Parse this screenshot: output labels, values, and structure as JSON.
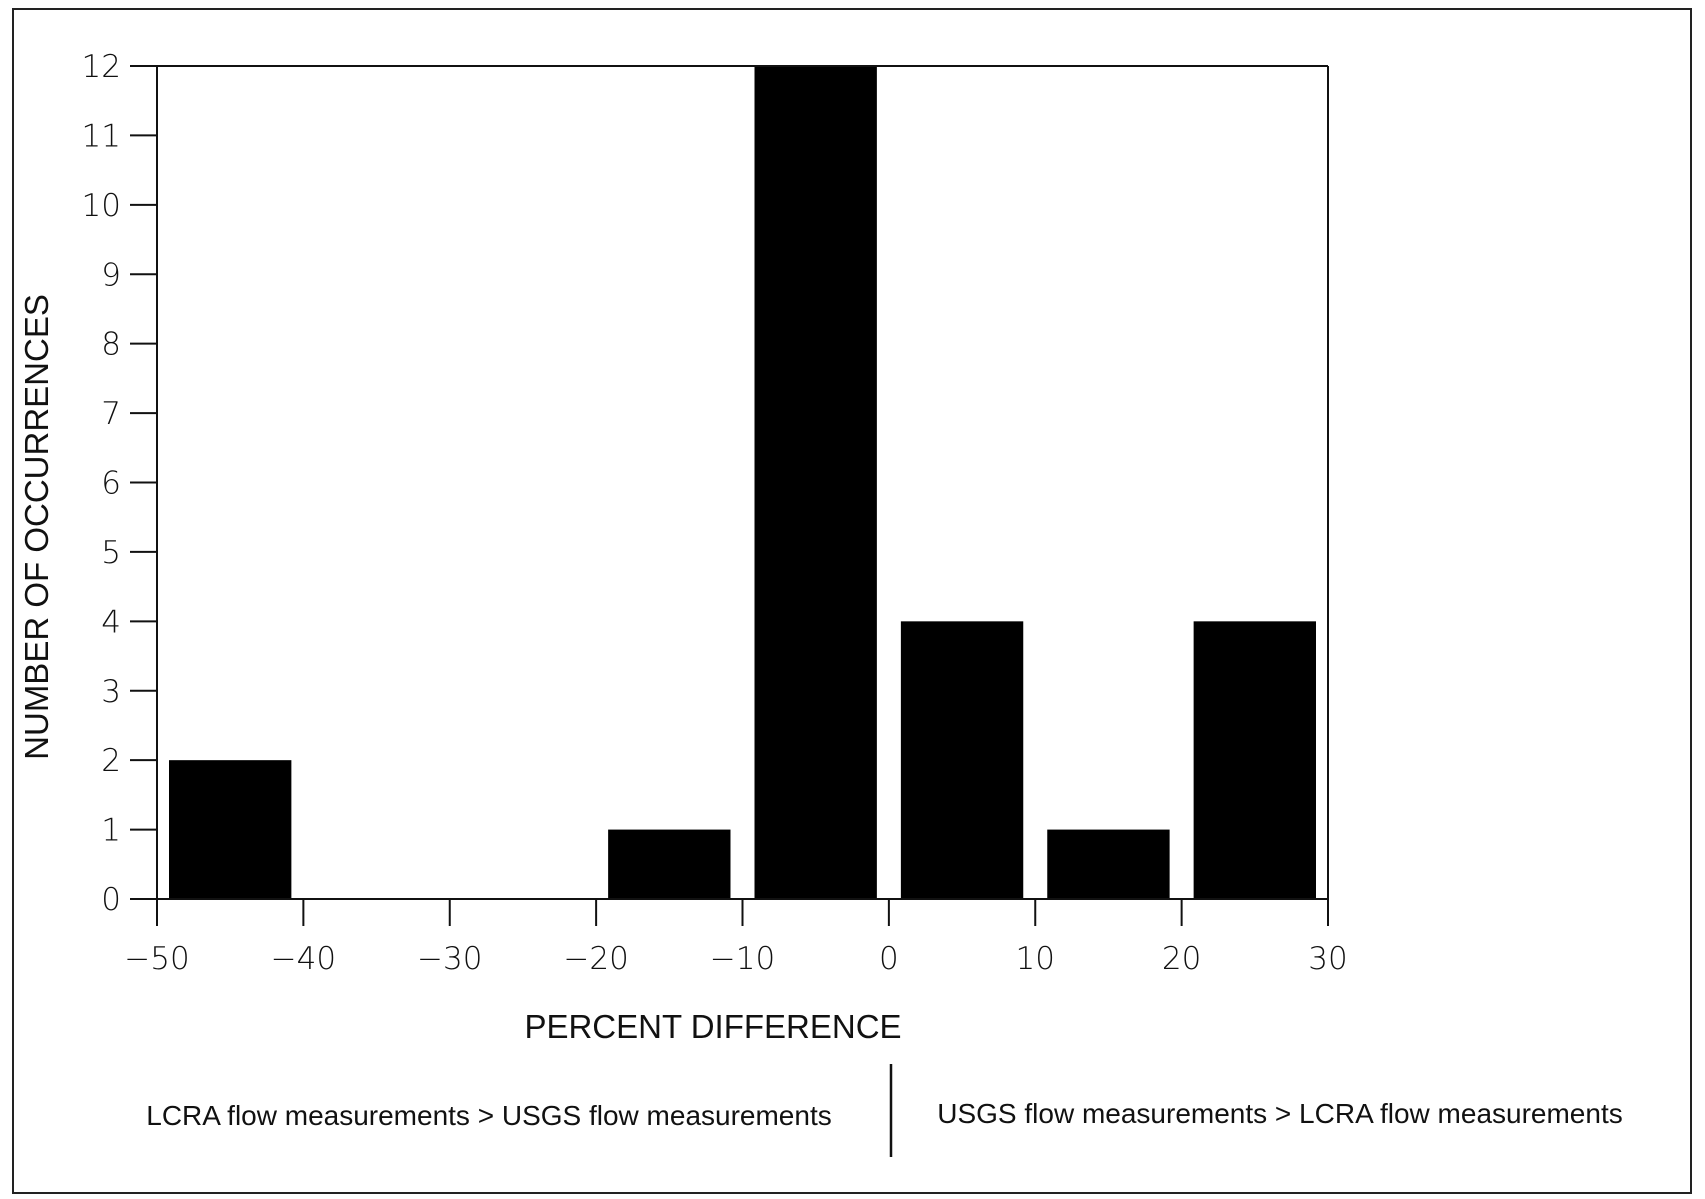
{
  "chart_data": {
    "type": "bar",
    "xlabel": "PERCENT DIFFERENCE",
    "ylabel": "NUMBER OF OCCURRENCES",
    "xlim": [
      -50,
      30
    ],
    "ylim": [
      0,
      12
    ],
    "x_ticks": [
      "−50",
      "−40",
      "−30",
      "−20",
      "−10",
      "0",
      "10",
      "20",
      "30"
    ],
    "y_ticks": [
      "0",
      "1",
      "2",
      "3",
      "4",
      "5",
      "6",
      "7",
      "8",
      "9",
      "10",
      "11",
      "12"
    ],
    "bins": [
      {
        "from": -50,
        "to": -40,
        "count": 2
      },
      {
        "from": -40,
        "to": -30,
        "count": 0
      },
      {
        "from": -30,
        "to": -20,
        "count": 0
      },
      {
        "from": -20,
        "to": -10,
        "count": 1
      },
      {
        "from": -10,
        "to": 0,
        "count": 12
      },
      {
        "from": 0,
        "to": 10,
        "count": 4
      },
      {
        "from": 10,
        "to": 20,
        "count": 1
      },
      {
        "from": 20,
        "to": 30,
        "count": 4
      }
    ],
    "annotations": {
      "left": "LCRA flow measurements > USGS flow measurements",
      "right": "USGS flow measurements > LCRA flow measurements"
    },
    "grid": false,
    "legend": "none",
    "bar_color": "#000000"
  }
}
